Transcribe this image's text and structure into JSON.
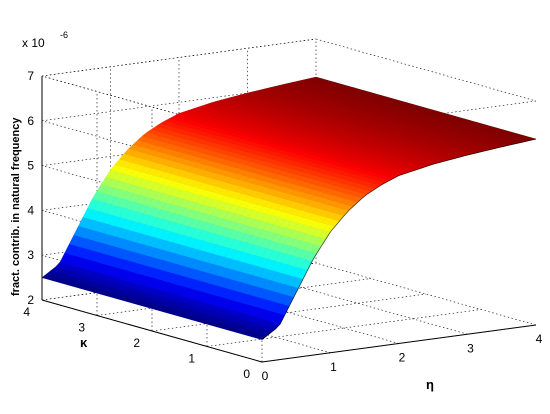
{
  "chart_data": {
    "type": "surface",
    "title": "",
    "xlabel": "η",
    "ylabel": "κ",
    "zlabel": "fract. contrib. in natural frequency",
    "z_multiplier_label": "x 10",
    "z_multiplier_exponent": "-6",
    "x_ticks": [
      "0",
      "1",
      "2",
      "3",
      "4"
    ],
    "y_ticks": [
      "0",
      "1",
      "2",
      "3",
      "4"
    ],
    "z_ticks": [
      "2",
      "3",
      "4",
      "5",
      "6",
      "7"
    ],
    "xlim": [
      0,
      4
    ],
    "ylim": [
      0,
      4
    ],
    "zlim": [
      2,
      7
    ],
    "grid": true,
    "colormap": "jet",
    "description_of_values": "z depends only on η; constant along κ",
    "x": [
      0,
      0.25,
      0.5,
      0.75,
      1,
      1.25,
      1.5,
      1.75,
      2,
      2.5,
      3,
      3.5,
      4
    ],
    "z": [
      2.5,
      2.75,
      3.45,
      4.15,
      4.7,
      5.1,
      5.4,
      5.6,
      5.75,
      5.9,
      6.0,
      6.08,
      6.15
    ]
  }
}
